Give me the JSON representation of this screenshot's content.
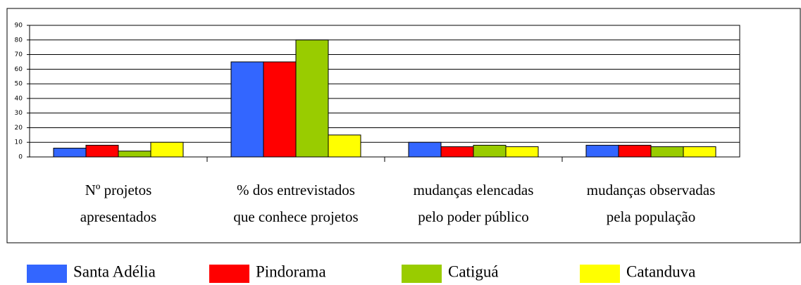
{
  "chart_data": {
    "type": "bar",
    "categories": [
      [
        "Nº projetos",
        "apresentados"
      ],
      [
        "%  dos entrevistados",
        "que conhece projetos"
      ],
      [
        "mudanças elencadas",
        "pelo poder público"
      ],
      [
        "mudanças observadas",
        "pela população"
      ]
    ],
    "series": [
      {
        "name": "Santa Adélia",
        "color": "#3366ff",
        "values": [
          6,
          65,
          10,
          8
        ]
      },
      {
        "name": "Pindorama",
        "color": "#ff0000",
        "values": [
          8,
          65,
          7,
          8
        ]
      },
      {
        "name": "Catiguá",
        "color": "#99cc00",
        "values": [
          4,
          80,
          8,
          7
        ]
      },
      {
        "name": "Catanduva",
        "color": "#ffff00",
        "values": [
          10,
          15,
          7,
          7
        ]
      }
    ],
    "ylim": [
      0,
      90
    ],
    "yticks": [
      0,
      10,
      20,
      30,
      40,
      50,
      60,
      70,
      80,
      90
    ],
    "grid": true,
    "legend": "bottom"
  }
}
